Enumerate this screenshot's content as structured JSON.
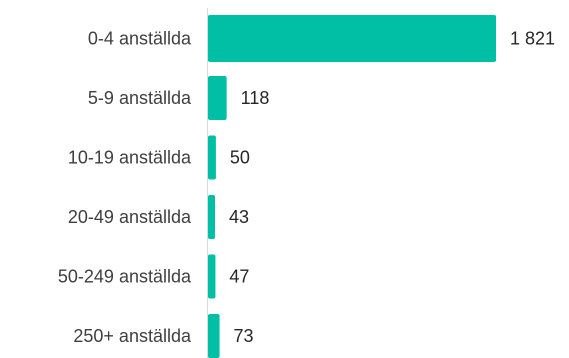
{
  "chart_data": {
    "type": "bar",
    "orientation": "horizontal",
    "categories": [
      "0-4 anställda",
      "5-9 anställda",
      "10-19 anställda",
      "20-49 anställda",
      "50-249 anställda",
      "250+ anställda"
    ],
    "values": [
      1821,
      118,
      50,
      43,
      47,
      73
    ],
    "value_labels": [
      "1 821",
      "118",
      "50",
      "43",
      "47",
      "73"
    ],
    "title": "",
    "xlabel": "",
    "ylabel": "",
    "xlim": [
      0,
      1821
    ],
    "grid": false,
    "legend": "none",
    "bar_color": "#00bfa5",
    "axis_color": "#d9d9d9"
  }
}
